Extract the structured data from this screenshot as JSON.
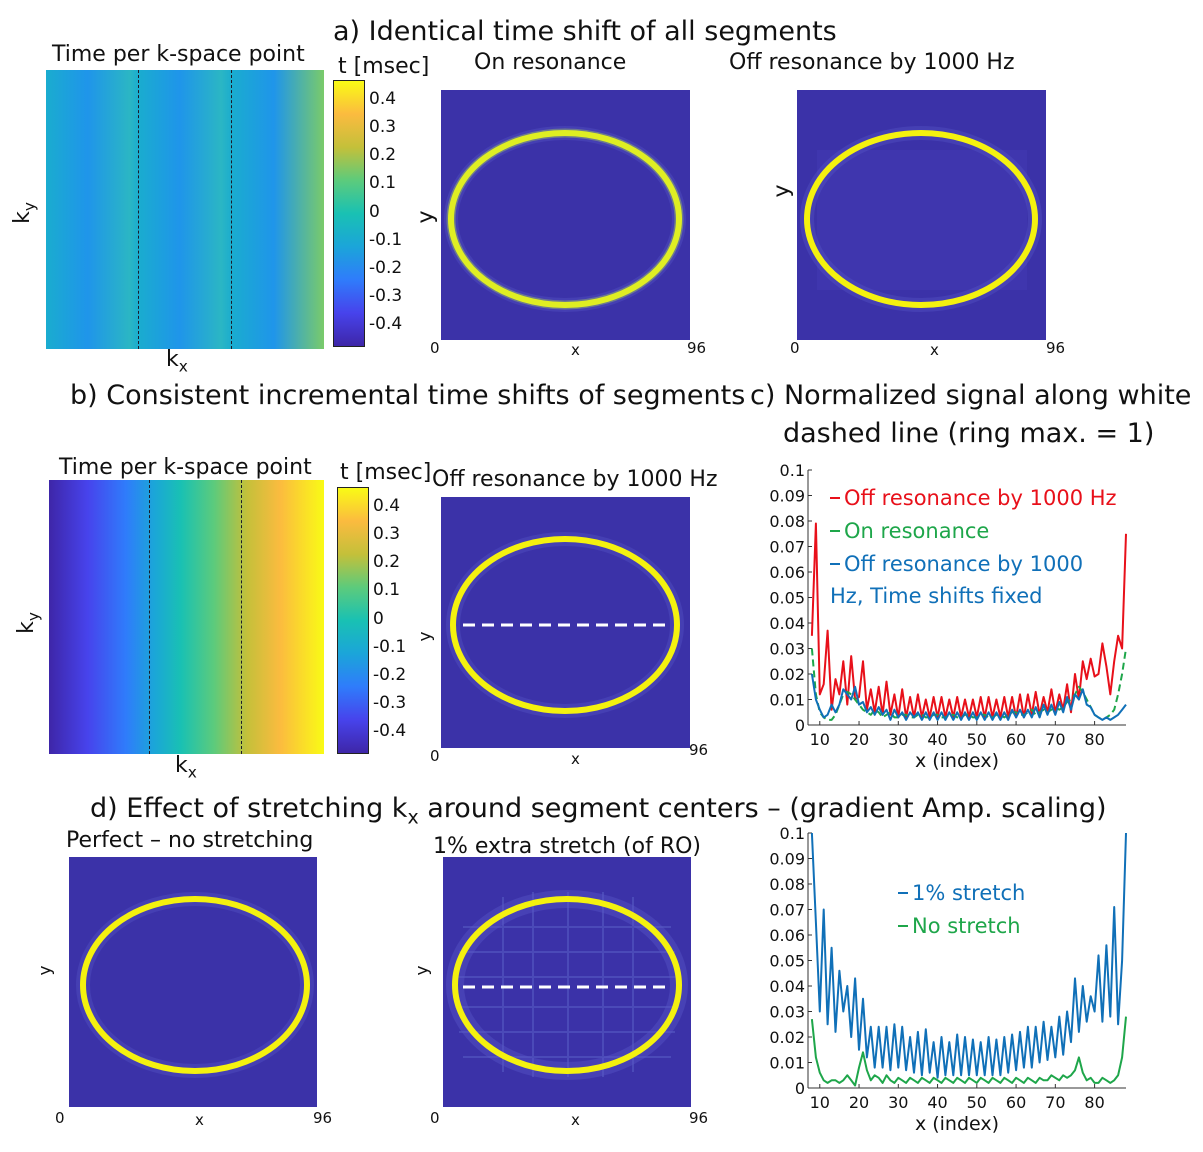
{
  "titles": {
    "a": "a)  Identical time shift of all segments",
    "b": "b) Consistent incremental time shifts of segments",
    "c_line1": "c) Normalized signal along white",
    "c_line2": "dashed line (ring max. = 1)",
    "d_prefix": "d)     Effect of stretching k",
    "d_sub": "x",
    "d_suffix": " around segment centers – (gradient Amp. scaling)"
  },
  "panel_labels": {
    "a_time": "Time per k-space point",
    "a_on": "On resonance",
    "a_off": "Off resonance by 1000 Hz",
    "b_time": "Time per k-space point",
    "b_off": "Off resonance by 1000 Hz",
    "d_perfect": "Perfect – no stretching",
    "d_stretch": "1% extra stretch (of RO)"
  },
  "axes": {
    "ky_main": "k",
    "ky_sub": "y",
    "kx_main": "k",
    "kx_sub": "x",
    "x": "x",
    "y": "y",
    "x_min": "0",
    "x_max": "96",
    "x_index": "x (index)"
  },
  "colorbar": {
    "label": "t [msec]",
    "ticks": [
      "0.4",
      "0.3",
      "0.2",
      "0.1",
      "0",
      "-0.1",
      "-0.2",
      "-0.3",
      "-0.4"
    ],
    "range": [
      -0.47,
      0.47
    ],
    "colormap": [
      "#3e26a8",
      "#4743ec",
      "#2f7cfb",
      "#1ba5d9",
      "#19c1b3",
      "#5ccb7c",
      "#c4c03a",
      "#fbbb3f",
      "#f9fb15"
    ]
  },
  "colors": {
    "image_bg": "#3b32a8",
    "ring": "#f4f10f",
    "dashed_line": "#ffffff",
    "off_resonance": "#e8101a",
    "on_resonance": "#1ea64a",
    "fixed": "#1070b8",
    "stretch": "#1070b8",
    "no_stretch": "#1ea64a"
  },
  "chart_data": [
    {
      "type": "line",
      "title": "c) Normalized signal along white dashed line (ring max. = 1)",
      "xlabel": "x (index)",
      "ylabel": "",
      "xlim": [
        7,
        88
      ],
      "ylim": [
        0,
        0.1
      ],
      "xticks": [
        10,
        20,
        30,
        40,
        50,
        60,
        70,
        80
      ],
      "yticks": [
        0,
        0.01,
        0.02,
        0.03,
        0.04,
        0.05,
        0.06,
        0.07,
        0.08,
        0.09,
        0.1
      ],
      "legend": "top-left",
      "series": [
        {
          "name": "Off resonance by 1000 Hz",
          "color": "#e8101a",
          "style": "solid",
          "x": [
            8,
            9,
            10,
            11,
            12,
            13,
            14,
            15,
            16,
            17,
            18,
            19,
            20,
            21,
            22,
            23,
            24,
            25,
            26,
            27,
            28,
            29,
            30,
            31,
            32,
            33,
            34,
            35,
            36,
            37,
            38,
            39,
            40,
            41,
            42,
            43,
            44,
            45,
            46,
            47,
            48,
            49,
            50,
            51,
            52,
            53,
            54,
            55,
            56,
            57,
            58,
            59,
            60,
            61,
            62,
            63,
            64,
            65,
            66,
            67,
            68,
            69,
            70,
            71,
            72,
            73,
            74,
            75,
            76,
            77,
            78,
            79,
            80,
            81,
            82,
            83,
            84,
            85,
            86,
            87,
            88
          ],
          "values": [
            0.035,
            0.079,
            0.012,
            0.016,
            0.037,
            0.006,
            0.018,
            0.012,
            0.025,
            0.008,
            0.027,
            0.01,
            0.011,
            0.025,
            0.006,
            0.014,
            0.005,
            0.015,
            0.004,
            0.017,
            0.004,
            0.012,
            0.003,
            0.014,
            0.003,
            0.011,
            0.003,
            0.012,
            0.003,
            0.01,
            0.003,
            0.011,
            0.003,
            0.011,
            0.003,
            0.01,
            0.003,
            0.011,
            0.003,
            0.01,
            0.003,
            0.01,
            0.003,
            0.011,
            0.003,
            0.011,
            0.003,
            0.01,
            0.003,
            0.011,
            0.003,
            0.011,
            0.003,
            0.012,
            0.003,
            0.012,
            0.004,
            0.013,
            0.004,
            0.011,
            0.005,
            0.014,
            0.005,
            0.012,
            0.006,
            0.016,
            0.005,
            0.02,
            0.01,
            0.025,
            0.018,
            0.026,
            0.019,
            0.02,
            0.032,
            0.023,
            0.012,
            0.025,
            0.035,
            0.03,
            0.075
          ]
        },
        {
          "name": "On resonance",
          "color": "#1ea64a",
          "style": "dashed",
          "x": [
            8,
            9,
            10,
            11,
            12,
            13,
            14,
            15,
            16,
            17,
            18,
            19,
            20,
            21,
            22,
            23,
            24,
            25,
            26,
            27,
            28,
            29,
            30,
            31,
            32,
            33,
            34,
            35,
            36,
            37,
            38,
            39,
            40,
            41,
            42,
            43,
            44,
            45,
            46,
            47,
            48,
            49,
            50,
            51,
            52,
            53,
            54,
            55,
            56,
            57,
            58,
            59,
            60,
            61,
            62,
            63,
            64,
            65,
            66,
            67,
            68,
            69,
            70,
            71,
            72,
            73,
            74,
            75,
            76,
            77,
            78,
            79,
            80,
            81,
            82,
            83,
            84,
            85,
            86,
            87,
            88
          ],
          "values": [
            0.03,
            0.012,
            0.005,
            0.003,
            0.002,
            0.002,
            0.004,
            0.008,
            0.012,
            0.013,
            0.012,
            0.01,
            0.008,
            0.006,
            0.005,
            0.004,
            0.006,
            0.005,
            0.003,
            0.004,
            0.005,
            0.003,
            0.003,
            0.004,
            0.004,
            0.003,
            0.003,
            0.004,
            0.004,
            0.003,
            0.003,
            0.004,
            0.004,
            0.003,
            0.003,
            0.004,
            0.004,
            0.003,
            0.003,
            0.004,
            0.004,
            0.003,
            0.003,
            0.004,
            0.004,
            0.003,
            0.003,
            0.004,
            0.004,
            0.003,
            0.004,
            0.005,
            0.005,
            0.004,
            0.004,
            0.005,
            0.006,
            0.004,
            0.005,
            0.006,
            0.005,
            0.006,
            0.007,
            0.006,
            0.007,
            0.009,
            0.01,
            0.012,
            0.015,
            0.013,
            0.01,
            0.007,
            0.004,
            0.003,
            0.002,
            0.003,
            0.004,
            0.006,
            0.012,
            0.02,
            0.03
          ]
        },
        {
          "name": "Off resonance by 1000 Hz, Time shifts fixed",
          "color": "#1070b8",
          "style": "solid",
          "x": [
            8,
            9,
            10,
            11,
            12,
            13,
            14,
            15,
            16,
            17,
            18,
            19,
            20,
            21,
            22,
            23,
            24,
            25,
            26,
            27,
            28,
            29,
            30,
            31,
            32,
            33,
            34,
            35,
            36,
            37,
            38,
            39,
            40,
            41,
            42,
            43,
            44,
            45,
            46,
            47,
            48,
            49,
            50,
            51,
            52,
            53,
            54,
            55,
            56,
            57,
            58,
            59,
            60,
            61,
            62,
            63,
            64,
            65,
            66,
            67,
            68,
            69,
            70,
            71,
            72,
            73,
            74,
            75,
            76,
            77,
            78,
            79,
            80,
            81,
            82,
            83,
            84,
            85,
            86,
            87,
            88
          ],
          "values": [
            0.02,
            0.01,
            0.006,
            0.003,
            0.004,
            0.008,
            0.005,
            0.008,
            0.014,
            0.012,
            0.01,
            0.015,
            0.008,
            0.009,
            0.005,
            0.007,
            0.004,
            0.007,
            0.004,
            0.006,
            0.002,
            0.006,
            0.003,
            0.005,
            0.002,
            0.005,
            0.003,
            0.005,
            0.002,
            0.005,
            0.002,
            0.005,
            0.002,
            0.005,
            0.002,
            0.005,
            0.002,
            0.005,
            0.002,
            0.005,
            0.002,
            0.005,
            0.002,
            0.005,
            0.002,
            0.005,
            0.002,
            0.005,
            0.002,
            0.005,
            0.002,
            0.006,
            0.003,
            0.006,
            0.003,
            0.006,
            0.003,
            0.007,
            0.003,
            0.008,
            0.004,
            0.008,
            0.004,
            0.009,
            0.005,
            0.011,
            0.006,
            0.012,
            0.01,
            0.014,
            0.008,
            0.007,
            0.004,
            0.003,
            0.002,
            0.003,
            0.002,
            0.003,
            0.004,
            0.006,
            0.008
          ]
        }
      ]
    },
    {
      "type": "line",
      "title": "",
      "xlabel": "x (index)",
      "ylabel": "",
      "xlim": [
        7,
        88
      ],
      "ylim": [
        0,
        0.1
      ],
      "xticks": [
        10,
        20,
        30,
        40,
        50,
        60,
        70,
        80
      ],
      "yticks": [
        0,
        0.01,
        0.02,
        0.03,
        0.04,
        0.05,
        0.06,
        0.07,
        0.08,
        0.09,
        0.1
      ],
      "legend": "top-center",
      "series": [
        {
          "name": "1% stretch",
          "color": "#1070b8",
          "style": "solid",
          "x": [
            8,
            9,
            10,
            11,
            12,
            13,
            14,
            15,
            16,
            17,
            18,
            19,
            20,
            21,
            22,
            23,
            24,
            25,
            26,
            27,
            28,
            29,
            30,
            31,
            32,
            33,
            34,
            35,
            36,
            37,
            38,
            39,
            40,
            41,
            42,
            43,
            44,
            45,
            46,
            47,
            48,
            49,
            50,
            51,
            52,
            53,
            54,
            55,
            56,
            57,
            58,
            59,
            60,
            61,
            62,
            63,
            64,
            65,
            66,
            67,
            68,
            69,
            70,
            71,
            72,
            73,
            74,
            75,
            76,
            77,
            78,
            79,
            80,
            81,
            82,
            83,
            84,
            85,
            86,
            87,
            88
          ],
          "values": [
            0.1,
            0.065,
            0.03,
            0.07,
            0.025,
            0.055,
            0.022,
            0.046,
            0.03,
            0.04,
            0.02,
            0.043,
            0.015,
            0.035,
            0.012,
            0.024,
            0.008,
            0.024,
            0.008,
            0.024,
            0.007,
            0.025,
            0.008,
            0.024,
            0.007,
            0.02,
            0.006,
            0.022,
            0.005,
            0.023,
            0.006,
            0.018,
            0.004,
            0.02,
            0.005,
            0.018,
            0.005,
            0.021,
            0.005,
            0.02,
            0.005,
            0.019,
            0.005,
            0.018,
            0.005,
            0.02,
            0.005,
            0.019,
            0.005,
            0.02,
            0.006,
            0.021,
            0.007,
            0.022,
            0.008,
            0.024,
            0.008,
            0.024,
            0.01,
            0.026,
            0.011,
            0.024,
            0.012,
            0.028,
            0.013,
            0.03,
            0.018,
            0.043,
            0.022,
            0.04,
            0.026,
            0.036,
            0.03,
            0.052,
            0.026,
            0.056,
            0.028,
            0.071,
            0.025,
            0.05,
            0.1
          ]
        },
        {
          "name": "No stretch",
          "color": "#1ea64a",
          "style": "solid",
          "x": [
            8,
            9,
            10,
            11,
            12,
            13,
            14,
            15,
            16,
            17,
            18,
            19,
            20,
            21,
            22,
            23,
            24,
            25,
            26,
            27,
            28,
            29,
            30,
            31,
            32,
            33,
            34,
            35,
            36,
            37,
            38,
            39,
            40,
            41,
            42,
            43,
            44,
            45,
            46,
            47,
            48,
            49,
            50,
            51,
            52,
            53,
            54,
            55,
            56,
            57,
            58,
            59,
            60,
            61,
            62,
            63,
            64,
            65,
            66,
            67,
            68,
            69,
            70,
            71,
            72,
            73,
            74,
            75,
            76,
            77,
            78,
            79,
            80,
            81,
            82,
            83,
            84,
            85,
            86,
            87,
            88
          ],
          "values": [
            0.027,
            0.012,
            0.006,
            0.003,
            0.002,
            0.003,
            0.003,
            0.002,
            0.003,
            0.005,
            0.003,
            0.001,
            0.008,
            0.014,
            0.007,
            0.003,
            0.005,
            0.004,
            0.002,
            0.005,
            0.003,
            0.002,
            0.004,
            0.003,
            0.002,
            0.004,
            0.003,
            0.002,
            0.004,
            0.003,
            0.002,
            0.004,
            0.003,
            0.002,
            0.004,
            0.003,
            0.002,
            0.004,
            0.003,
            0.002,
            0.004,
            0.003,
            0.002,
            0.004,
            0.003,
            0.002,
            0.004,
            0.003,
            0.002,
            0.004,
            0.003,
            0.002,
            0.004,
            0.003,
            0.002,
            0.004,
            0.003,
            0.002,
            0.004,
            0.003,
            0.003,
            0.005,
            0.004,
            0.003,
            0.005,
            0.004,
            0.005,
            0.007,
            0.012,
            0.006,
            0.003,
            0.004,
            0.002,
            0.002,
            0.004,
            0.003,
            0.002,
            0.003,
            0.005,
            0.012,
            0.028
          ]
        }
      ]
    }
  ]
}
